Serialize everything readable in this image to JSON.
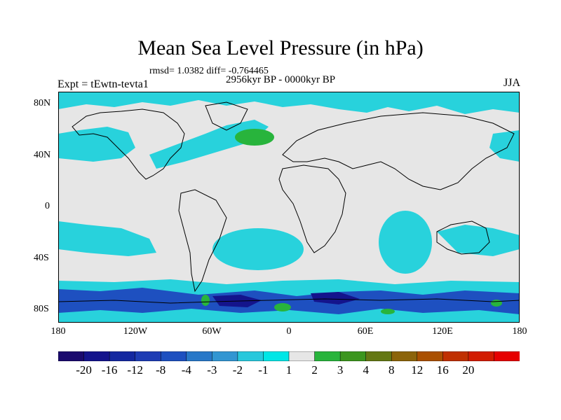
{
  "title": "Mean Sea Level Pressure (in hPa)",
  "stats": "rmsd= 1.0382 diff= -0.764465",
  "period": "2956kyr BP - 0000kyr BP",
  "experiment": "Expt = tEwtn-tevta1",
  "season": "JJA",
  "lat_labels": [
    "80N",
    "40N",
    "0",
    "40S",
    "80S"
  ],
  "lon_labels": [
    "180",
    "120W",
    "60W",
    "0",
    "60E",
    "120E",
    "180"
  ],
  "colorbar": {
    "labels": [
      "-20",
      "-16",
      "-12",
      "-8",
      "-4",
      "-3",
      "-2",
      "-1",
      "1",
      "2",
      "3",
      "4",
      "8",
      "12",
      "16",
      "20"
    ],
    "colors": [
      "#1a0a6e",
      "#14148c",
      "#1428a0",
      "#1e3cb4",
      "#1e50c0",
      "#2878c8",
      "#3296d2",
      "#28c8dc",
      "#00e6e6",
      "#e6e6e6",
      "#28b43c",
      "#3c961e",
      "#647814",
      "#8c640a",
      "#aa5000",
      "#c03000",
      "#d21c00",
      "#e60000"
    ]
  },
  "colors": {
    "land_outline": "#000000",
    "neutral": "#e6e6e6",
    "cyan": "#28d2dc",
    "green": "#28b43c",
    "blue": "#1e50c0",
    "dark_blue": "#14148c"
  }
}
